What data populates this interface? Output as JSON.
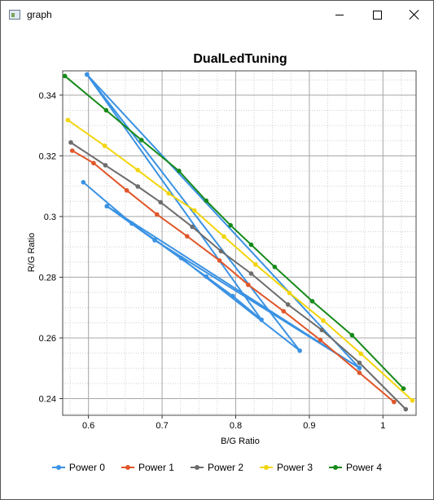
{
  "window": {
    "title": "graph"
  },
  "chart_data": {
    "type": "line",
    "title": "DualLedTuning",
    "xlabel": "B/G Ratio",
    "ylabel": "R/G Ratio",
    "xlim": [
      0.565,
      1.045
    ],
    "ylim": [
      0.2345,
      0.348
    ],
    "x_ticks": [
      0.6,
      0.7,
      0.8,
      0.9,
      1.0
    ],
    "x_tick_labels": [
      "0.6",
      "0.7",
      "0.8",
      "0.9",
      "1"
    ],
    "y_ticks": [
      0.24,
      0.26,
      0.28,
      0.3,
      0.32,
      0.34
    ],
    "y_tick_labels": [
      "0.24",
      "0.26",
      "0.28",
      "0.3",
      "0.32",
      "0.34"
    ],
    "grid": true,
    "legend_position": "bottom",
    "series": [
      {
        "name": "Power 0",
        "color": "#3a92e3",
        "points": [
          [
            0.593,
            0.3113
          ],
          [
            0.659,
            0.2977
          ],
          [
            0.76,
            0.2802
          ],
          [
            0.796,
            0.2738
          ],
          [
            0.835,
            0.266
          ],
          [
            0.598,
            0.3468
          ],
          [
            0.968,
            0.2501
          ],
          [
            0.625,
            0.3034
          ],
          [
            0.726,
            0.2863
          ],
          [
            0.887,
            0.2558
          ],
          [
            0.598,
            0.3468
          ],
          [
            0.968,
            0.2501
          ],
          [
            0.625,
            0.3034
          ],
          [
            0.69,
            0.2922
          ],
          [
            0.968,
            0.2501
          ]
        ]
      },
      {
        "name": "Power 1",
        "color": "#e0562a",
        "points": [
          [
            0.578,
            0.3217
          ],
          [
            0.607,
            0.3176
          ],
          [
            0.652,
            0.3086
          ],
          [
            0.693,
            0.3007
          ],
          [
            0.734,
            0.2935
          ],
          [
            0.778,
            0.2855
          ],
          [
            0.817,
            0.2775
          ],
          [
            0.865,
            0.2688
          ],
          [
            0.915,
            0.2593
          ],
          [
            0.968,
            0.2485
          ],
          [
            1.015,
            0.2389
          ]
        ]
      },
      {
        "name": "Power 2",
        "color": "#6c6c6c",
        "points": [
          [
            0.576,
            0.3244
          ],
          [
            0.623,
            0.3169
          ],
          [
            0.667,
            0.3099
          ],
          [
            0.698,
            0.3047
          ],
          [
            0.741,
            0.2966
          ],
          [
            0.78,
            0.2886
          ],
          [
            0.821,
            0.2812
          ],
          [
            0.871,
            0.271
          ],
          [
            0.917,
            0.2626
          ],
          [
            0.968,
            0.2518
          ],
          [
            1.031,
            0.2365
          ]
        ]
      },
      {
        "name": "Power 3",
        "color": "#f3d50e",
        "points": [
          [
            0.572,
            0.3318
          ],
          [
            0.622,
            0.3233
          ],
          [
            0.667,
            0.3153
          ],
          [
            0.709,
            0.3076
          ],
          [
            0.744,
            0.302
          ],
          [
            0.784,
            0.2934
          ],
          [
            0.827,
            0.2842
          ],
          [
            0.873,
            0.2748
          ],
          [
            0.919,
            0.2657
          ],
          [
            0.97,
            0.2548
          ],
          [
            1.04,
            0.2394
          ]
        ]
      },
      {
        "name": "Power 4",
        "color": "#168a1a",
        "points": [
          [
            0.568,
            0.3463
          ],
          [
            0.624,
            0.335
          ],
          [
            0.672,
            0.3252
          ],
          [
            0.723,
            0.315
          ],
          [
            0.76,
            0.3052
          ],
          [
            0.793,
            0.2971
          ],
          [
            0.821,
            0.2907
          ],
          [
            0.853,
            0.2834
          ],
          [
            0.904,
            0.2721
          ],
          [
            0.958,
            0.2609
          ],
          [
            1.028,
            0.2433
          ]
        ]
      }
    ]
  }
}
